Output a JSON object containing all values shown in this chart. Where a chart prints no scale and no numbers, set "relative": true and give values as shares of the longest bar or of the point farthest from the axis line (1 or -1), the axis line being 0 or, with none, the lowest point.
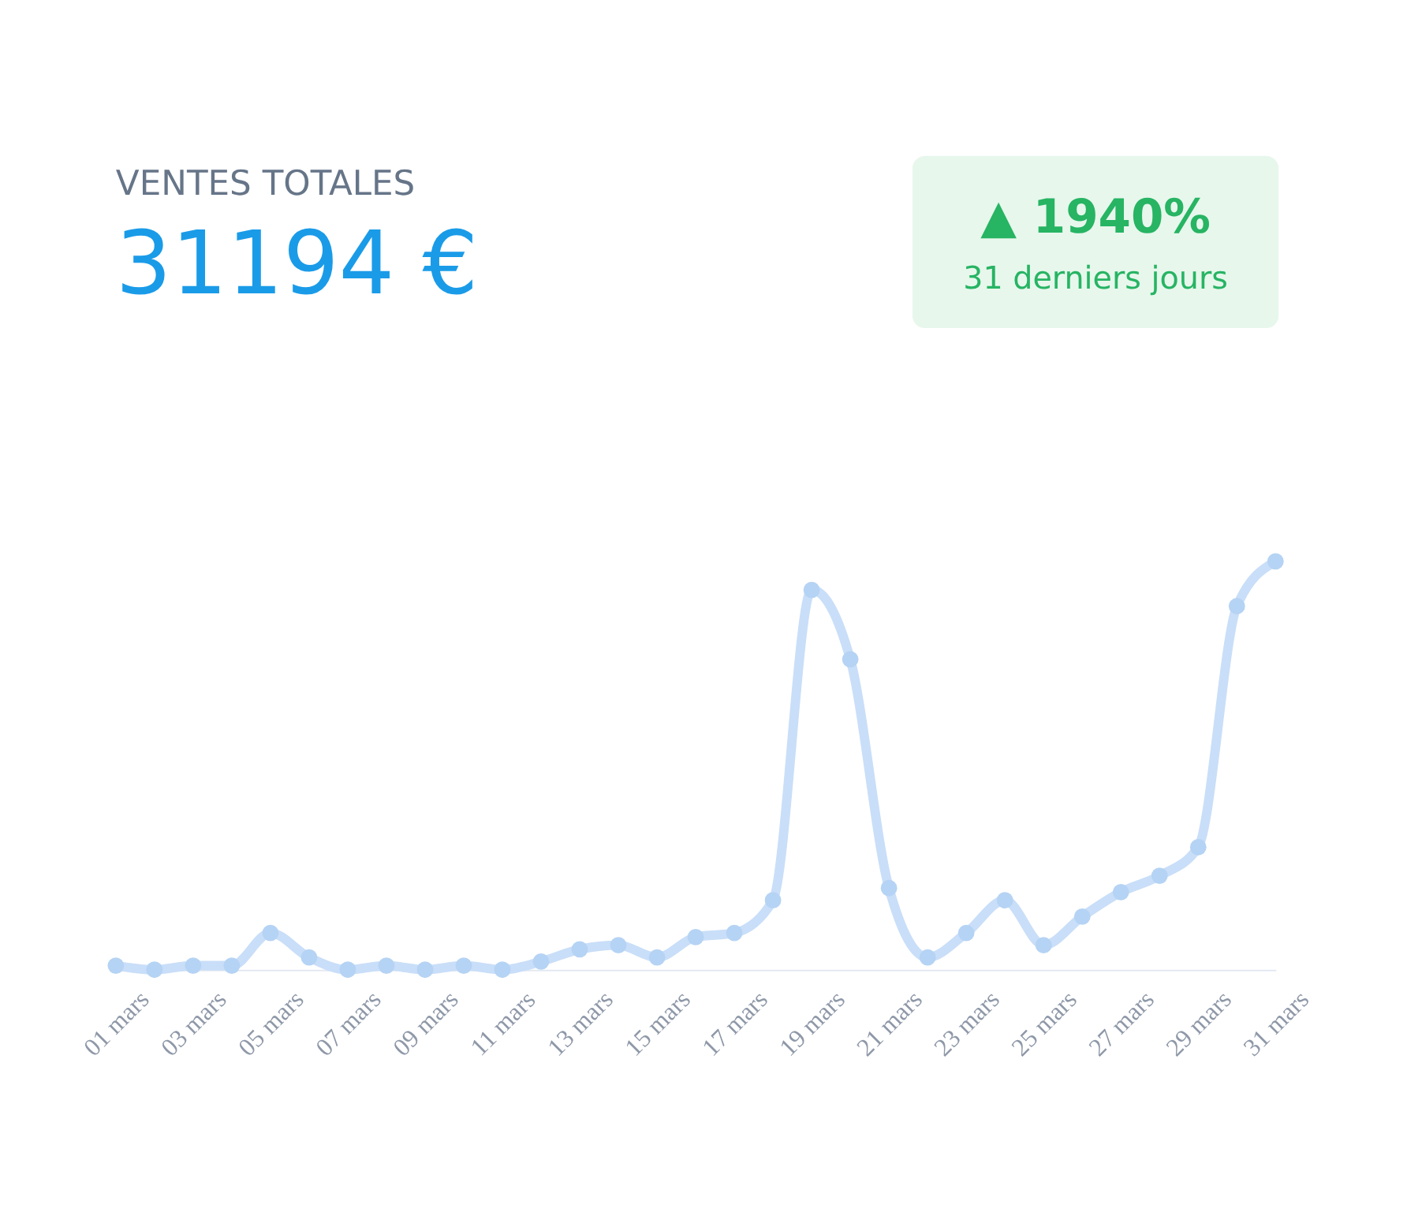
{
  "chart_data": {
    "type": "line",
    "title": "VENTES TOTALES",
    "subtitle": "31194 €",
    "annotations": [
      "▲ 1940%",
      "31 derniers jours"
    ],
    "categories": [
      "01 mars",
      null,
      "03 mars",
      null,
      "05 mars",
      null,
      "07 mars",
      null,
      "09 mars",
      null,
      "11 mars",
      null,
      "13 mars",
      null,
      "15 mars",
      null,
      "17 mars",
      null,
      "19 mars",
      null,
      "21 mars",
      null,
      "23 mars",
      null,
      "25 mars",
      null,
      "27 mars",
      null,
      "29 mars",
      null,
      "31 mars"
    ],
    "relative": true,
    "marker": "circle",
    "series": [
      {
        "color": "#c9def8",
        "values": [
          0.01,
          0.0,
          0.01,
          0.01,
          0.09,
          0.03,
          0.0,
          0.01,
          0.0,
          0.01,
          0.0,
          0.02,
          0.05,
          0.06,
          0.03,
          0.08,
          0.09,
          0.17,
          0.93,
          0.76,
          0.2,
          0.03,
          0.09,
          0.17,
          0.06,
          0.13,
          0.19,
          0.23,
          0.3,
          0.89,
          1.0
        ]
      }
    ]
  }
}
